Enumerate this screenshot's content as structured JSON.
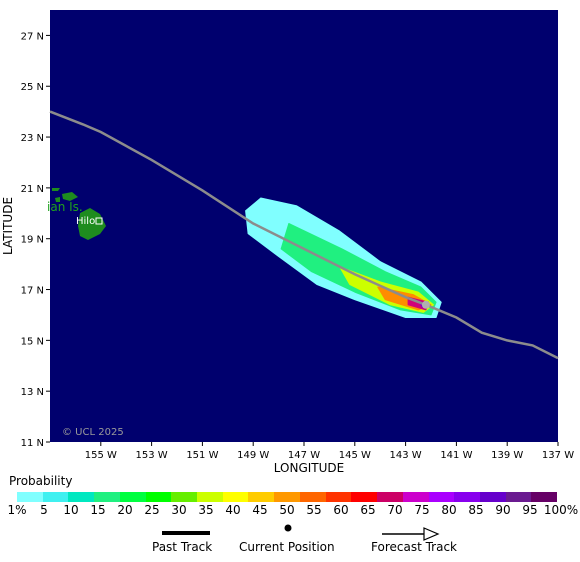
{
  "map": {
    "lon_range": [
      -157,
      -137
    ],
    "lat_range": [
      11,
      28
    ],
    "ocean_color": "#00006e",
    "track_color": "#8c8c8c",
    "land_color": "#1e8c1e",
    "x_ticks": [
      "155 W",
      "153 W",
      "151 W",
      "149 W",
      "147 W",
      "145 W",
      "143 W",
      "141 W",
      "139 W",
      "137 W"
    ],
    "y_ticks": [
      "11 N",
      "13 N",
      "15 N",
      "17 N",
      "19 N",
      "21 N",
      "23 N",
      "25 N",
      "27 N"
    ],
    "x_tick_values": [
      -155,
      -153,
      -151,
      -149,
      -147,
      -145,
      -143,
      -141,
      -139,
      -137
    ],
    "y_tick_values": [
      11,
      13,
      15,
      17,
      19,
      21,
      23,
      25,
      27
    ],
    "xlabel": "LONGITUDE",
    "ylabel": "LATITUDE",
    "island_label": "ian Is.",
    "city_label": "Hilo",
    "city_lonlat": [
      -155.1,
      19.7
    ],
    "copyright": "© UCL 2025",
    "past_track": [
      [
        -157,
        24
      ],
      [
        -155.7,
        23.5
      ],
      [
        -155,
        23.2
      ],
      [
        -153,
        22.1
      ],
      [
        -151,
        20.9
      ],
      [
        -149,
        19.6
      ],
      [
        -147,
        18.6
      ],
      [
        -145,
        17.6
      ],
      [
        -143,
        16.7
      ],
      [
        -142.2,
        16.4
      ]
    ],
    "forecast_track": [
      [
        -142.2,
        16.4
      ],
      [
        -141,
        15.9
      ],
      [
        -140,
        15.3
      ],
      [
        -139,
        15.0
      ],
      [
        -138,
        14.8
      ],
      [
        -137,
        14.3
      ]
    ],
    "current_position": [
      -142.2,
      16.4
    ],
    "probability_cone": [
      {
        "band": "1%",
        "points": [
          [
            -148.7,
            20.6
          ],
          [
            -147.3,
            20.3
          ],
          [
            -145.6,
            19.3
          ],
          [
            -144,
            18.1
          ],
          [
            -142.4,
            17.3
          ],
          [
            -141.6,
            16.5
          ],
          [
            -141.8,
            15.9
          ],
          [
            -143,
            15.9
          ],
          [
            -145,
            16.6
          ],
          [
            -146.5,
            17.2
          ],
          [
            -148,
            18.3
          ],
          [
            -149.2,
            19.2
          ],
          [
            -149.3,
            20.1
          ]
        ]
      },
      {
        "band": "15%",
        "points": [
          [
            -147.6,
            19.6
          ],
          [
            -145.5,
            18.6
          ],
          [
            -143.8,
            17.7
          ],
          [
            -142.4,
            17.1
          ],
          [
            -141.8,
            16.5
          ],
          [
            -142,
            16.0
          ],
          [
            -143.2,
            16.2
          ],
          [
            -145,
            16.9
          ],
          [
            -146.7,
            17.7
          ],
          [
            -147.9,
            18.6
          ]
        ]
      },
      {
        "band": "30%",
        "points": [
          [
            -145.6,
            17.9
          ],
          [
            -144,
            17.3
          ],
          [
            -142.5,
            16.9
          ],
          [
            -141.9,
            16.4
          ],
          [
            -142.3,
            16.1
          ],
          [
            -143.6,
            16.4
          ],
          [
            -145.2,
            17.2
          ]
        ]
      },
      {
        "band": "45%",
        "points": [
          [
            -144.1,
            17.1
          ],
          [
            -142.7,
            16.8
          ],
          [
            -142,
            16.4
          ],
          [
            -142.5,
            16.2
          ],
          [
            -143.8,
            16.6
          ]
        ]
      },
      {
        "band": "65%",
        "points": [
          [
            -142.9,
            16.7
          ],
          [
            -142.1,
            16.5
          ],
          [
            -142.2,
            16.2
          ],
          [
            -142.9,
            16.4
          ]
        ]
      },
      {
        "band": "85%",
        "points": [
          [
            -142.5,
            16.55
          ],
          [
            -142.15,
            16.4
          ],
          [
            -142.35,
            16.3
          ]
        ]
      }
    ],
    "band_colors": {
      "1%": "#80ffff",
      "15%": "#20f080",
      "30%": "#ccff00",
      "45%": "#ff8c00",
      "65%": "#d0007a",
      "85%": "#8a00c8"
    }
  },
  "legend": {
    "title": "Probability",
    "colors": [
      "#80ffff",
      "#40f0f0",
      "#00e8c0",
      "#20f080",
      "#00ff40",
      "#00ff00",
      "#66ee00",
      "#ccff00",
      "#ffff00",
      "#ffcc00",
      "#ff9900",
      "#ff6600",
      "#ff3300",
      "#ff0000",
      "#cc0066",
      "#cc00cc",
      "#aa00ff",
      "#8800ee",
      "#6600cc",
      "#6a1a90",
      "#660066"
    ],
    "labels": [
      "1%",
      "5",
      "10",
      "15",
      "20",
      "25",
      "30",
      "35",
      "40",
      "45",
      "50",
      "55",
      "60",
      "65",
      "70",
      "75",
      "80",
      "85",
      "90",
      "95",
      "100%"
    ]
  },
  "key": {
    "past_track": "Past Track",
    "current_position": "Current Position",
    "forecast_track": "Forecast Track"
  }
}
